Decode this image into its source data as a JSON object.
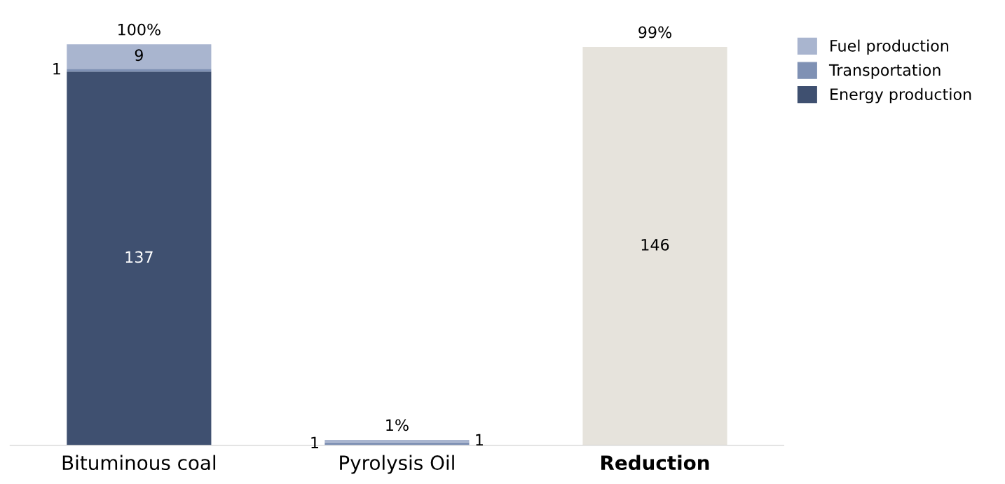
{
  "chart_data": {
    "type": "bar",
    "stacked": true,
    "tick_labels": "x",
    "data_labels": true,
    "legend": "top right",
    "grid": false,
    "categories": [
      "Bituminous coal",
      "Pyrolysis Oil",
      "Reduction"
    ],
    "series": [
      {
        "name": "Energy production",
        "color": "#3f5070",
        "values": [
          137,
          null,
          null
        ]
      },
      {
        "name": "Transportation",
        "color": "#7f91b4",
        "values": [
          1,
          1,
          null
        ]
      },
      {
        "name": "Fuel production",
        "color": "#a9b5cf",
        "values": [
          9,
          1,
          null
        ]
      },
      {
        "color": "#e6e3dc",
        "values": [
          null,
          null,
          146
        ]
      }
    ],
    "annotations": [
      {
        "text": "100%",
        "x": "Bituminous coal",
        "y": 147
      },
      {
        "text": "1%",
        "x": "Pyrolysis Oil",
        "y": 2
      },
      {
        "text": "99%",
        "x": "Reduction",
        "y": 146
      }
    ]
  }
}
